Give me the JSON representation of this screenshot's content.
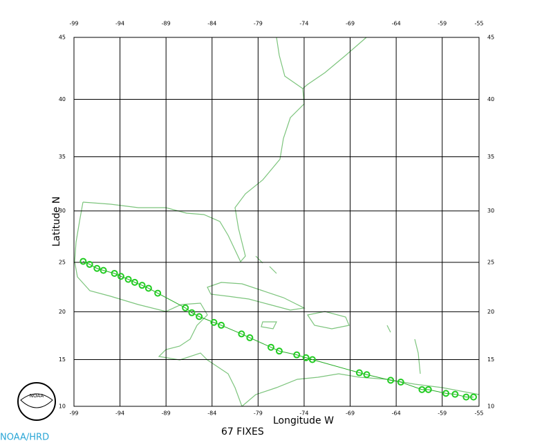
{
  "chart_data": {
    "type": "scatter",
    "projection": "mercator",
    "xlabel": "Longitude W",
    "ylabel": "Latitude N",
    "footer": "67 FIXES",
    "credit": "NOAA/HRD",
    "logo_text": "NOAA",
    "xlim": [
      -99,
      -55
    ],
    "ylim": [
      10,
      45
    ],
    "xticks": [
      -99,
      -94,
      -89,
      -84,
      -79,
      -74,
      -69,
      -64,
      -59,
      -55
    ],
    "yticks": [
      10,
      15,
      20,
      25,
      30,
      35,
      40,
      45
    ],
    "grid": true,
    "color": "#22cc22",
    "line_color": "#22aa22",
    "x": [
      -98.0,
      -97.3,
      -96.5,
      -95.8,
      -94.6,
      -93.9,
      -93.1,
      -92.4,
      -91.6,
      -90.9,
      -89.9,
      -86.9,
      -86.2,
      -85.4,
      -83.8,
      -83.0,
      -80.8,
      -79.9,
      -77.6,
      -76.7,
      -74.8,
      -73.8,
      -73.1,
      -68.0,
      -67.2,
      -64.6,
      -63.5,
      -61.2,
      -60.5,
      -58.6,
      -57.6,
      -56.4,
      -55.6
    ],
    "y": [
      25.1,
      24.8,
      24.4,
      24.2,
      23.9,
      23.6,
      23.3,
      23.0,
      22.7,
      22.4,
      21.9,
      20.4,
      19.9,
      19.5,
      18.9,
      18.6,
      17.7,
      17.3,
      16.3,
      15.9,
      15.5,
      15.2,
      15.0,
      13.6,
      13.4,
      12.8,
      12.6,
      11.8,
      11.8,
      11.4,
      11.3,
      11.0,
      11.0
    ]
  }
}
